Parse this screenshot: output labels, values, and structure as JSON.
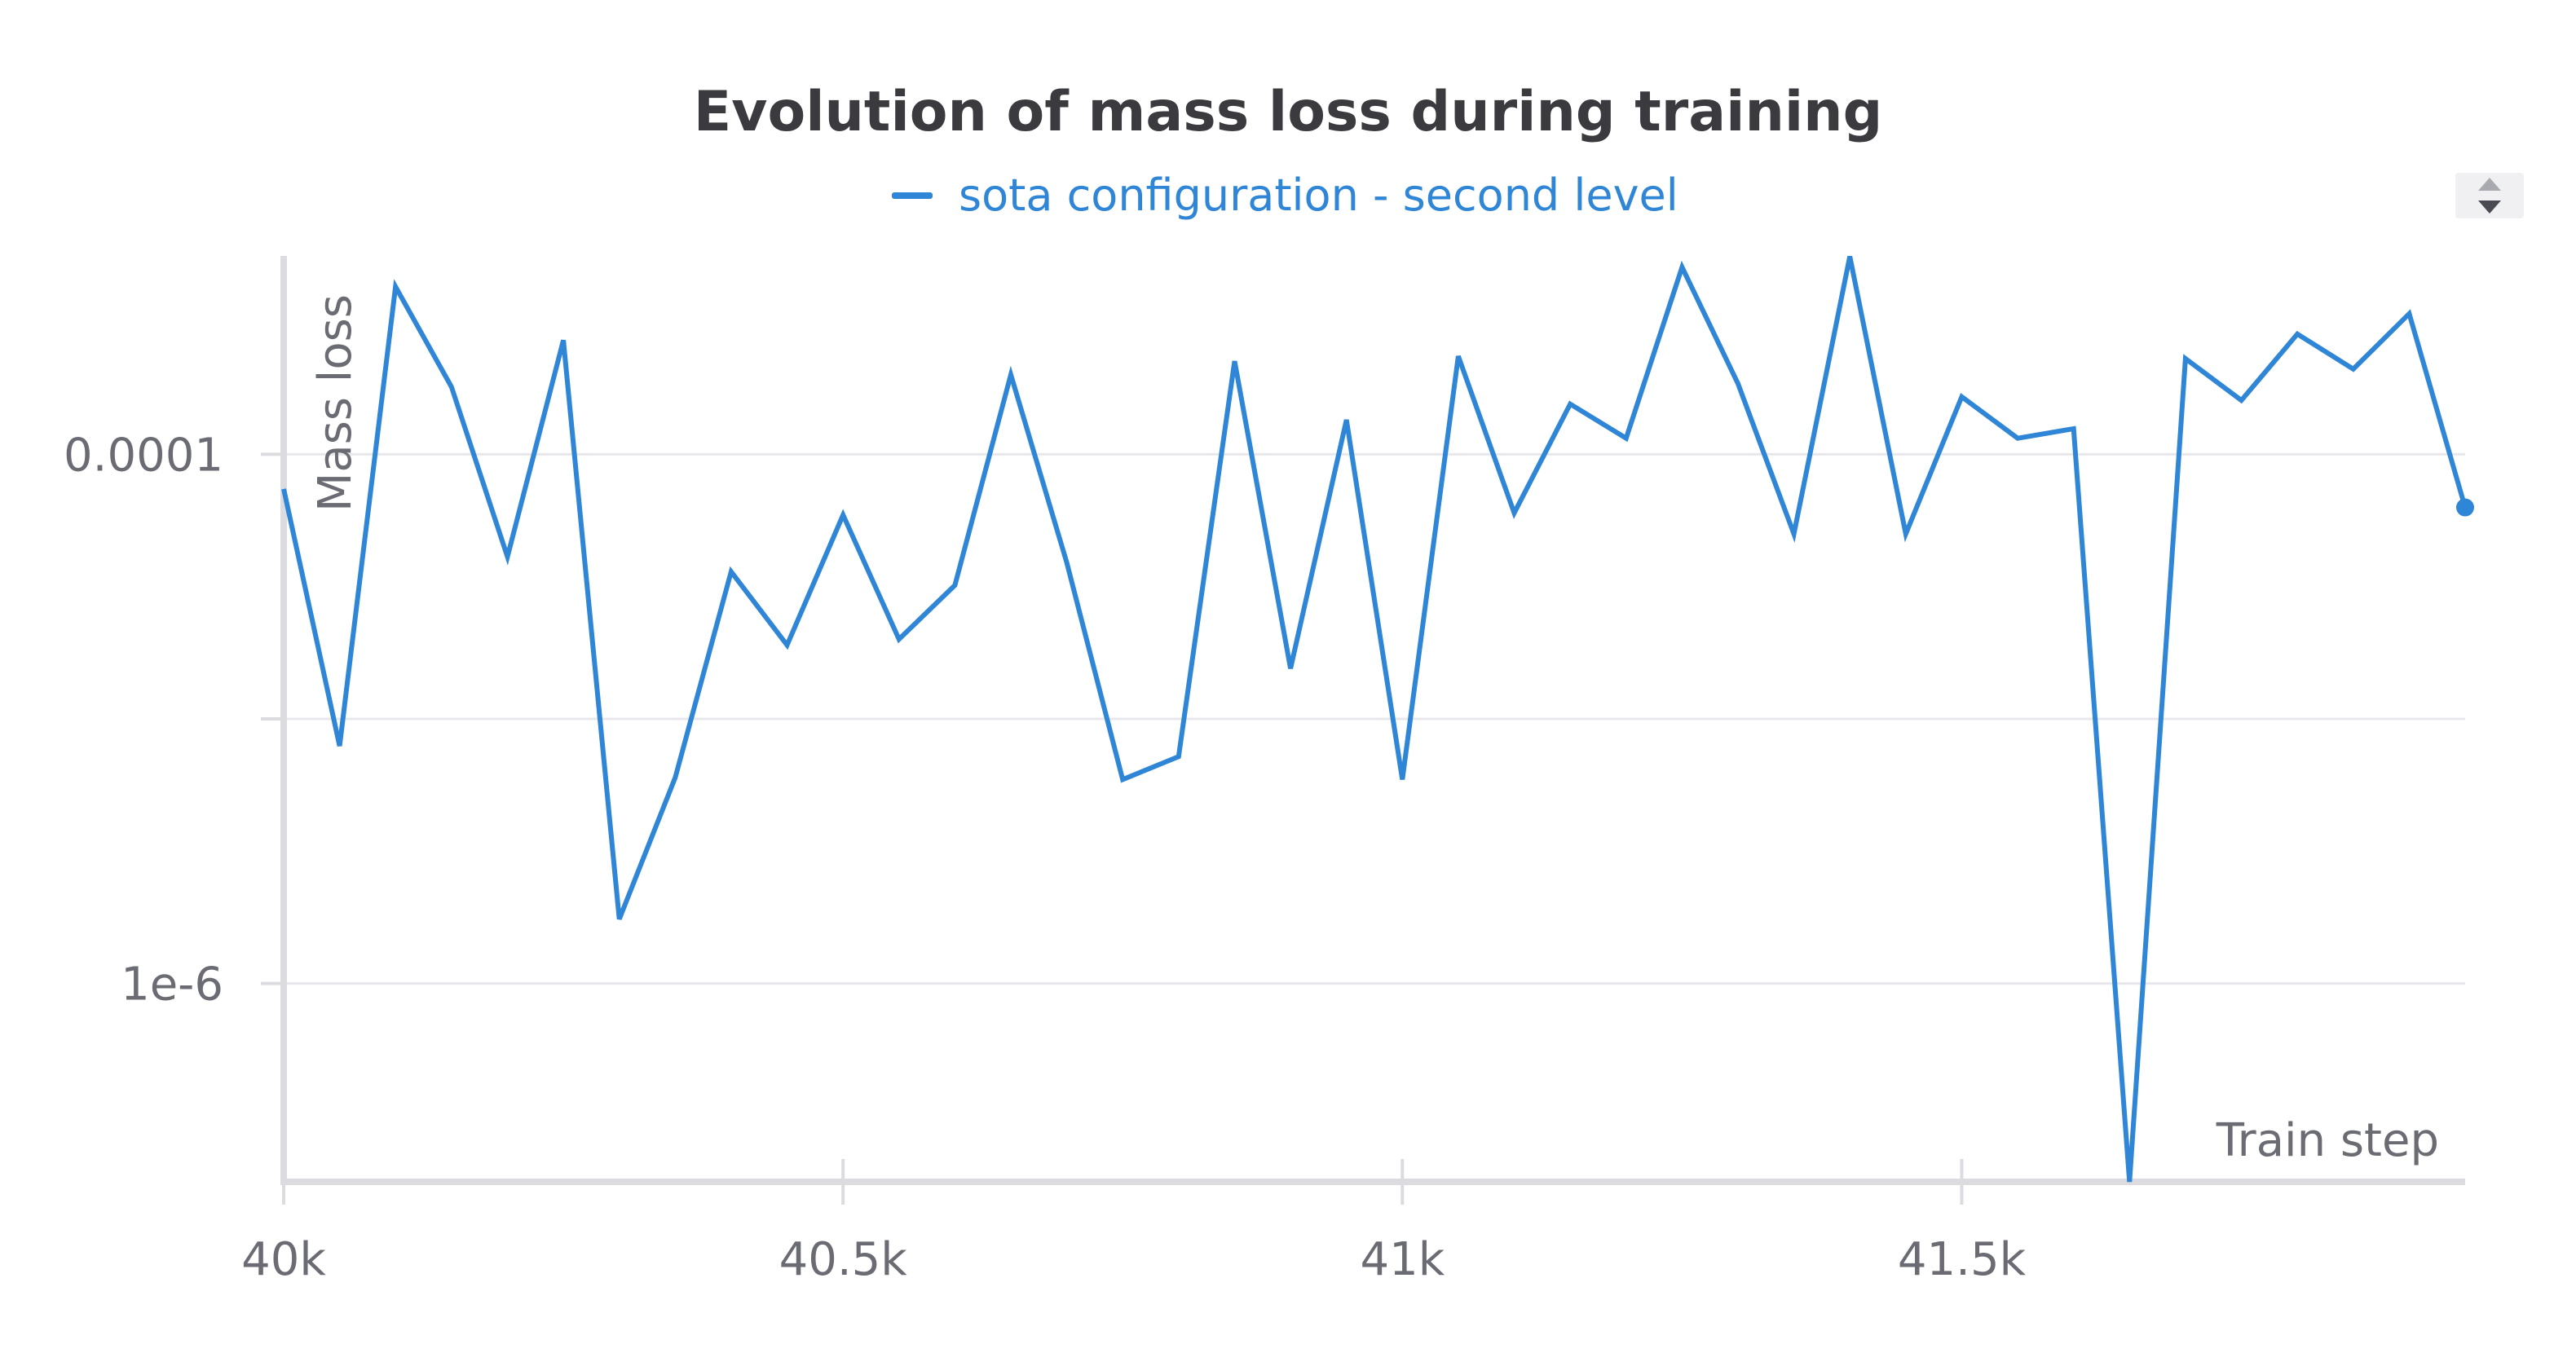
{
  "chart_data": {
    "type": "line",
    "title": "Evolution of mass loss during training",
    "xlabel": "Train step",
    "ylabel": "Mass loss",
    "y_scale": "log",
    "xlim": [
      40000,
      41950
    ],
    "ylim_log10": [
      -6.75,
      -3.25
    ],
    "x_ticks": [
      {
        "value": 40000,
        "label": "40k"
      },
      {
        "value": 40500,
        "label": "40.5k"
      },
      {
        "value": 41000,
        "label": "41k"
      },
      {
        "value": 41500,
        "label": "41.5k"
      }
    ],
    "y_ticks": [
      {
        "value": 0.0001,
        "label": "0.0001"
      },
      {
        "value": 1e-05,
        "label": ""
      },
      {
        "value": 1e-06,
        "label": "1e-6"
      }
    ],
    "grid": true,
    "legend_position": "top-center",
    "series": [
      {
        "name": "sota configuration - second level",
        "color": "#2f86d6",
        "x": [
          40000,
          40050,
          40100,
          40150,
          40200,
          40250,
          40300,
          40350,
          40400,
          40450,
          40500,
          40550,
          40600,
          40650,
          40700,
          40750,
          40800,
          40850,
          40900,
          40950,
          41000,
          41050,
          41100,
          41150,
          41200,
          41250,
          41300,
          41350,
          41400,
          41450,
          41500,
          41550,
          41600,
          41650,
          41700,
          41750,
          41800,
          41850,
          41900,
          41950
        ],
        "y": [
          7.4e-05,
          7.9e-06,
          0.00043,
          0.00018,
          4.1e-05,
          0.00027,
          1.75e-06,
          6e-06,
          3.6e-05,
          1.9e-05,
          5.9e-05,
          2e-05,
          3.2e-05,
          0.0002,
          3.9e-05,
          5.9e-06,
          7.2e-06,
          0.000225,
          1.55e-05,
          0.000135,
          5.9e-06,
          0.000235,
          6e-05,
          0.000155,
          0.000115,
          0.00051,
          0.000185,
          5e-05,
          0.00056,
          5e-05,
          0.000165,
          0.000115,
          0.000125,
          1.75e-07,
          0.00023,
          0.00016,
          0.000285,
          0.00021,
          0.00034,
          6.3e-05
        ]
      }
    ]
  },
  "controls": {
    "legend_scroll": "up-down-arrows-icon"
  }
}
